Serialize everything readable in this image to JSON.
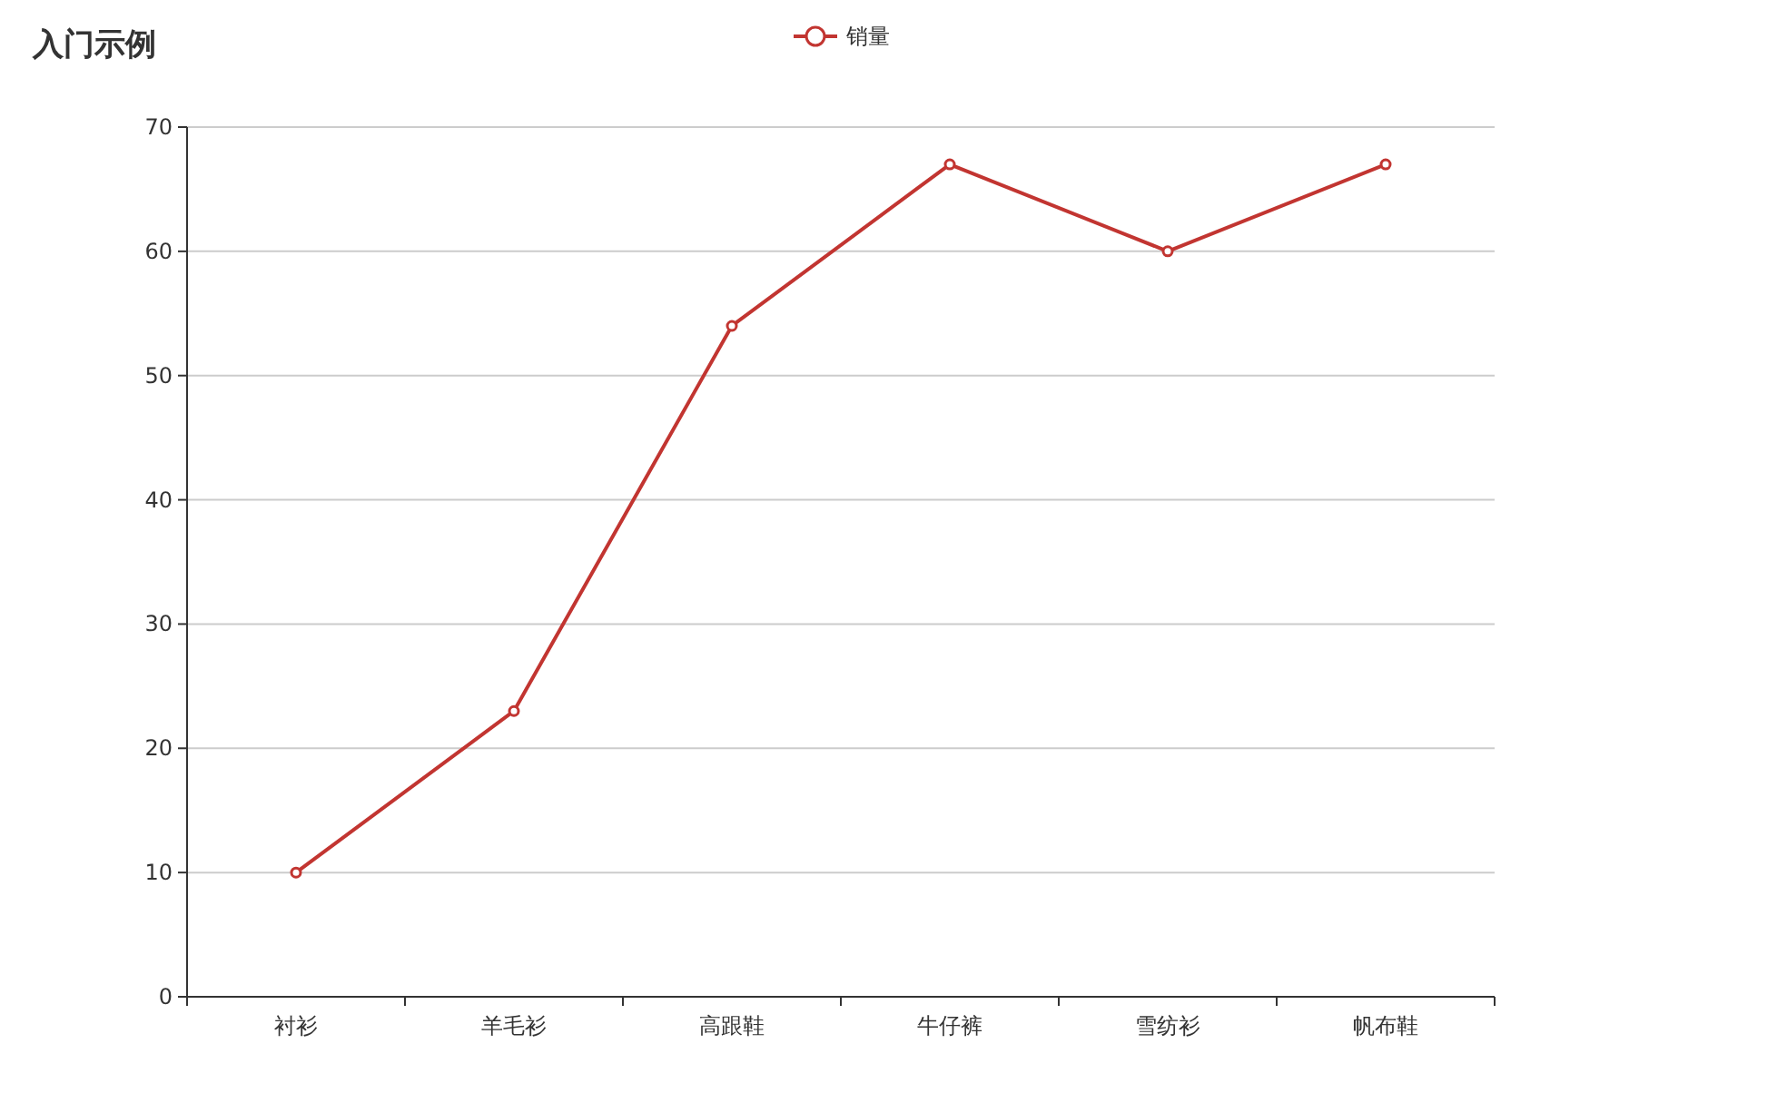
{
  "chart_data": {
    "type": "line",
    "title": "入门示例",
    "categories": [
      "衬衫",
      "羊毛衫",
      "高跟鞋",
      "牛仔裤",
      "雪纺衫",
      "帆布鞋"
    ],
    "series": [
      {
        "name": "销量",
        "color": "#c23531",
        "values": [
          10,
          23,
          54,
          67,
          60,
          67
        ]
      }
    ],
    "ylim": [
      0,
      70
    ],
    "yticks": [
      0,
      10,
      20,
      30,
      40,
      50,
      60,
      70
    ],
    "grid": "y",
    "legend": "top",
    "marker": "circle",
    "line_style": "solid"
  }
}
